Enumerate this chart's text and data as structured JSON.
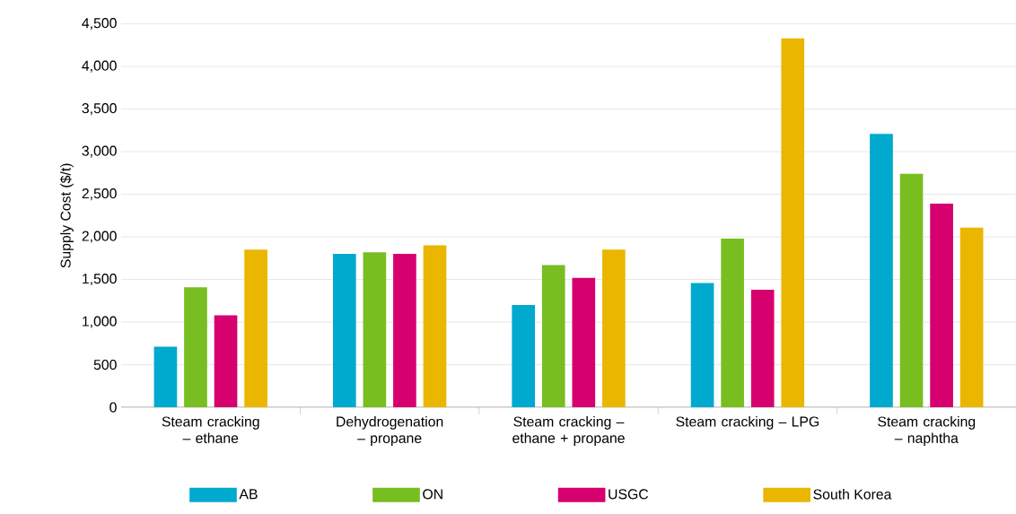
{
  "chart_data": {
    "type": "bar",
    "ylabel": "Supply Cost ($/t)",
    "categories": [
      "Steam cracking – ethane",
      "Dehydrogenation – propane",
      "Steam cracking – ethane + propane",
      "Steam cracking – LPG",
      "Steam cracking – naphtha"
    ],
    "series": [
      {
        "name": "AB",
        "color": "#00a9ce",
        "values": [
          710,
          1800,
          1200,
          1460,
          3210
        ]
      },
      {
        "name": "ON",
        "color": "#78be20",
        "values": [
          1410,
          1820,
          1670,
          1980,
          2740
        ]
      },
      {
        "name": "USGC",
        "color": "#d6006e",
        "values": [
          1080,
          1800,
          1520,
          1380,
          2390
        ]
      },
      {
        "name": "South Korea",
        "color": "#eab600",
        "values": [
          1850,
          1900,
          1850,
          4330,
          2110
        ]
      }
    ],
    "ylim": [
      0,
      4500
    ],
    "yticks": [
      {
        "value": 0,
        "label": "0"
      },
      {
        "value": 500,
        "label": "500"
      },
      {
        "value": 1000,
        "label": "1,000"
      },
      {
        "value": 1500,
        "label": "1,500"
      },
      {
        "value": 2000,
        "label": "2,000"
      },
      {
        "value": 2500,
        "label": "2,500"
      },
      {
        "value": 3000,
        "label": "3,000"
      },
      {
        "value": 3500,
        "label": "3,500"
      },
      {
        "value": 4000,
        "label": "4,000"
      },
      {
        "value": 4500,
        "label": "4,500"
      }
    ],
    "grid": "y",
    "legend": "bottom"
  }
}
